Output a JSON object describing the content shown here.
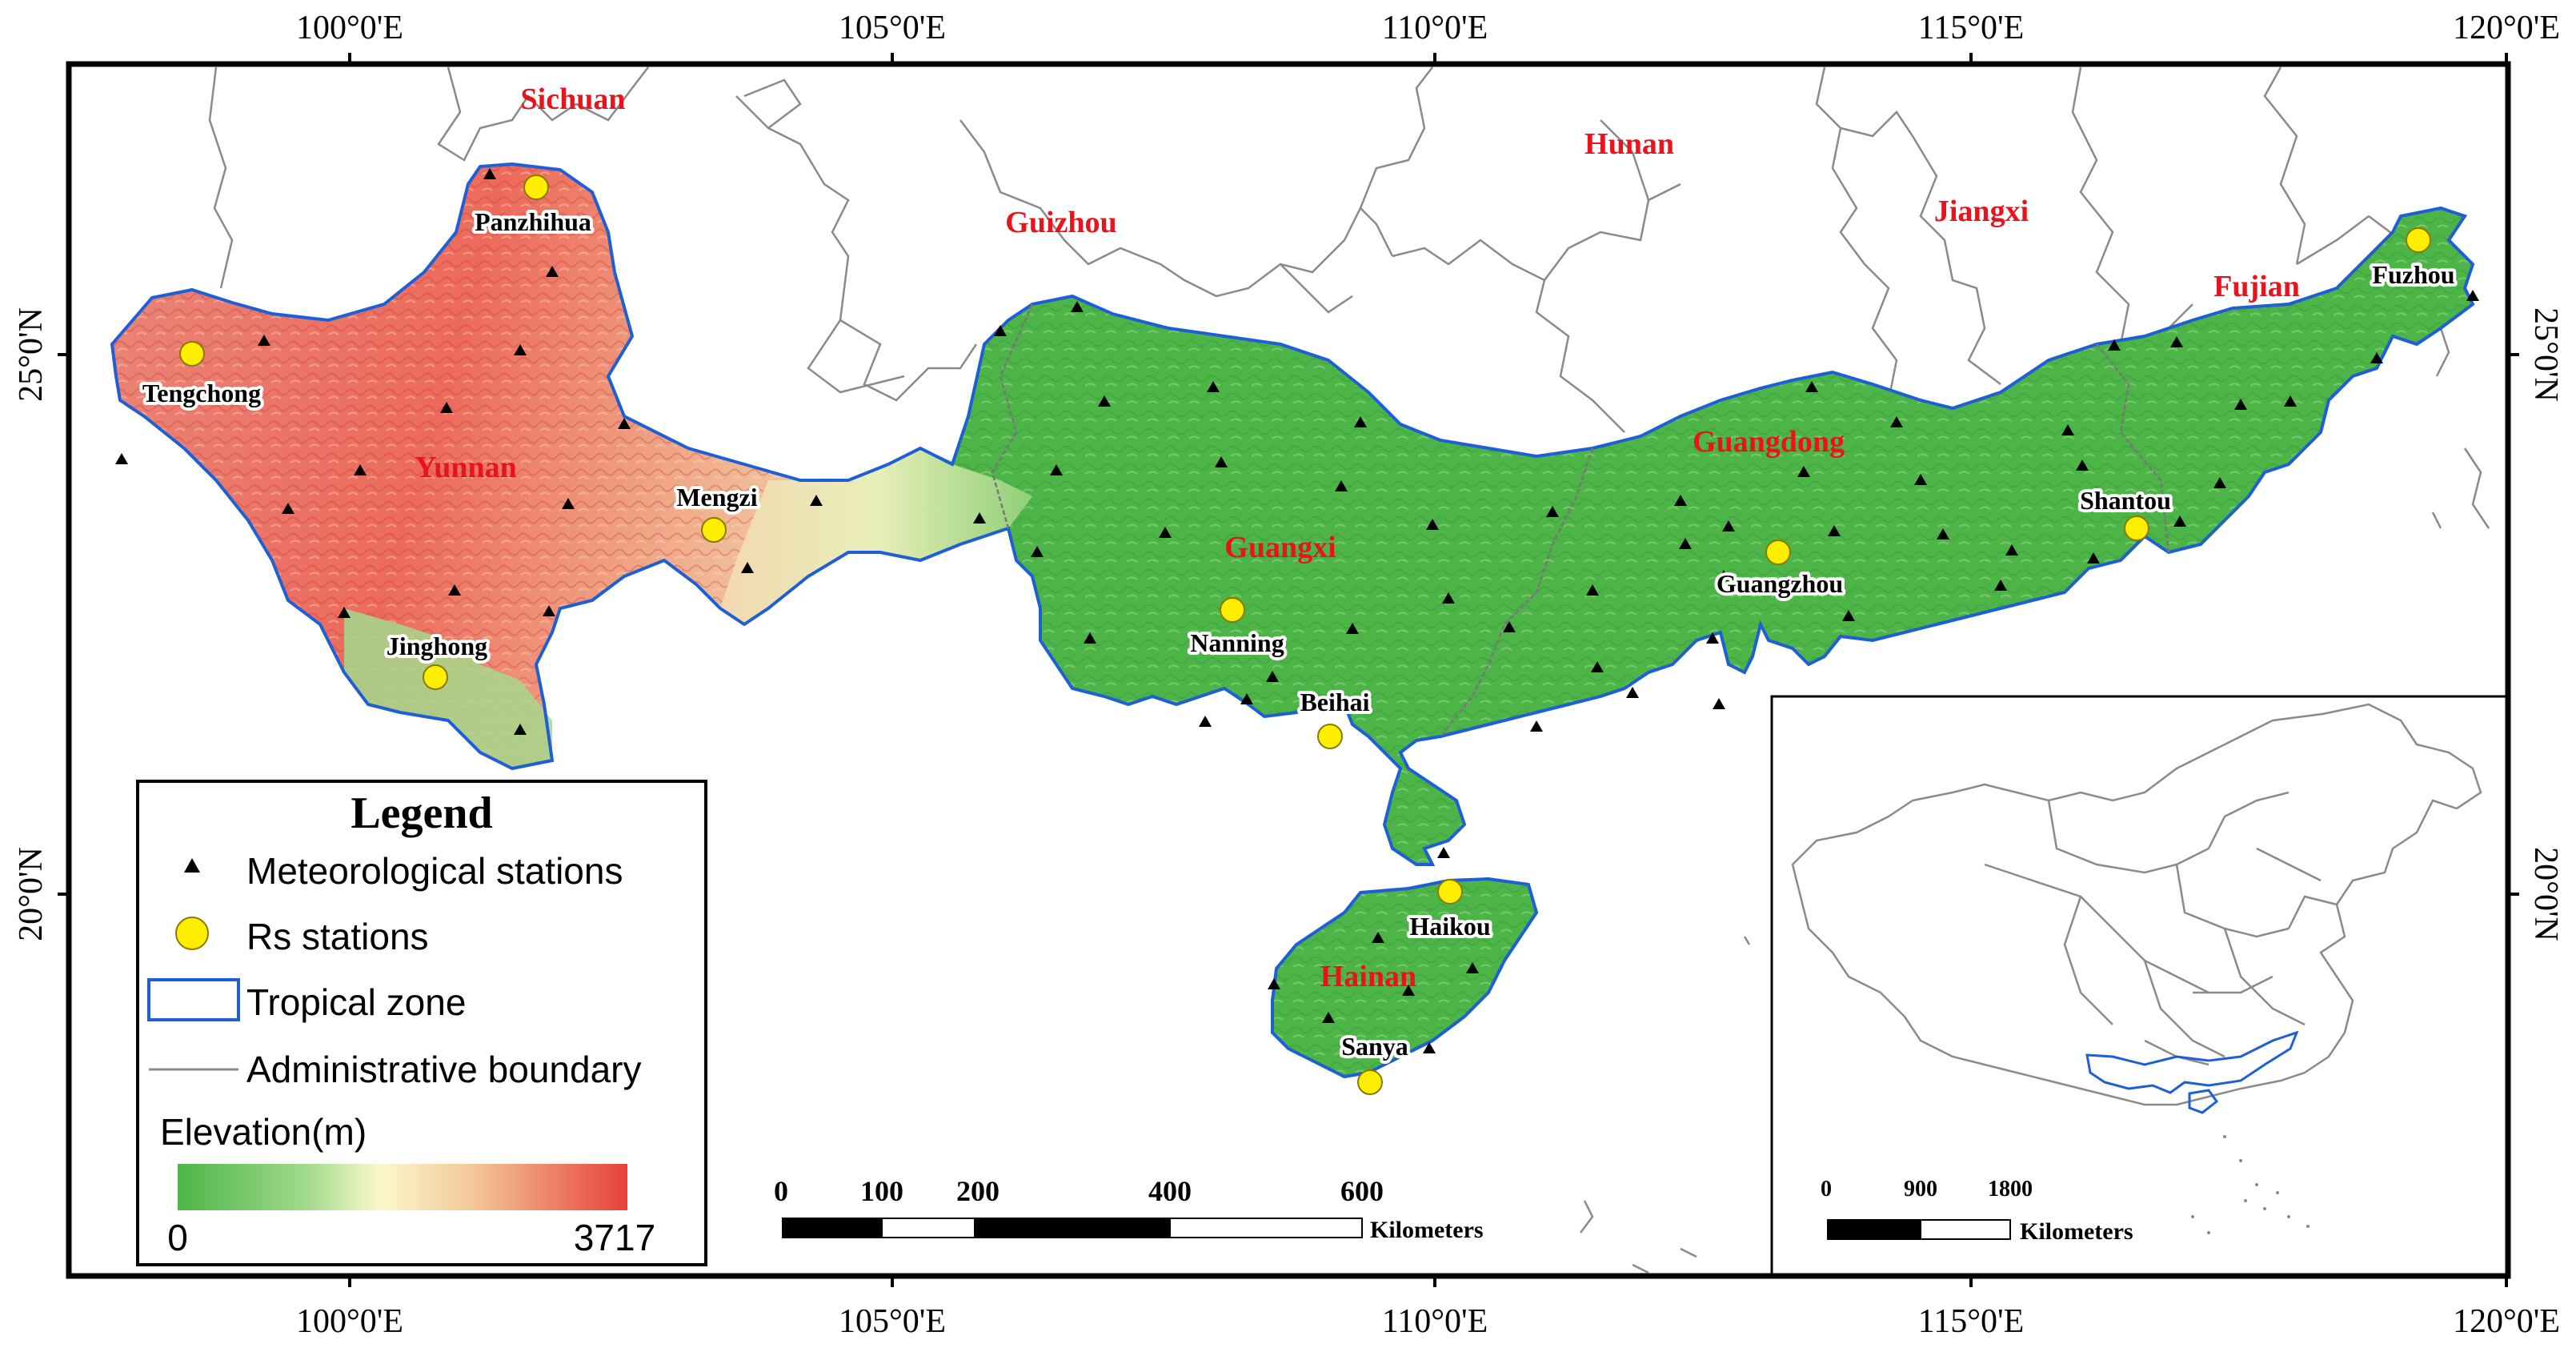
{
  "axes": {
    "longitude_labels": [
      "100°0'E",
      "105°0'E",
      "110°0'E",
      "115°0'E",
      "120°0'E"
    ],
    "latitude_labels": [
      "25°0'N",
      "20°0'N"
    ]
  },
  "provinces": [
    {
      "id": "sichuan",
      "label": "Sichuan"
    },
    {
      "id": "guizhou",
      "label": "Guizhou"
    },
    {
      "id": "hunan",
      "label": "Hunan"
    },
    {
      "id": "jiangxi",
      "label": "Jiangxi"
    },
    {
      "id": "fujian",
      "label": "Fujian"
    },
    {
      "id": "yunnan",
      "label": "Yunnan"
    },
    {
      "id": "guangxi",
      "label": "Guangxi"
    },
    {
      "id": "guangdong",
      "label": "Guangdong"
    },
    {
      "id": "hainan",
      "label": "Hainan"
    }
  ],
  "rs_stations": [
    {
      "id": "panzhihua",
      "label": "Panzhihua"
    },
    {
      "id": "tengchong",
      "label": "Tengchong"
    },
    {
      "id": "mengzi",
      "label": "Mengzi"
    },
    {
      "id": "jinghong",
      "label": "Jinghong"
    },
    {
      "id": "nanning",
      "label": "Nanning"
    },
    {
      "id": "beihai",
      "label": "Beihai"
    },
    {
      "id": "guangzhou",
      "label": "Guangzhou"
    },
    {
      "id": "shantou",
      "label": "Shantou"
    },
    {
      "id": "fuzhou",
      "label": "Fuzhou"
    },
    {
      "id": "haikou",
      "label": "Haikou"
    },
    {
      "id": "sanya",
      "label": "Sanya"
    }
  ],
  "legend": {
    "title": "Legend",
    "meteorological": "Meteorological stations",
    "rs": "Rs stations",
    "tropical": "Tropical zone",
    "admin": "Administrative boundary",
    "elevation_title": "Elevation(m)",
    "elevation_min": "0",
    "elevation_max": "3717"
  },
  "scale_bar": {
    "ticks": [
      "0",
      "100",
      "200",
      "400",
      "600"
    ],
    "unit": "Kilometers"
  },
  "inset": {
    "scale_ticks": [
      "0",
      "900",
      "1800"
    ],
    "unit": "Kilometers"
  },
  "colors": {
    "tropical_outline": "#1f5fd6",
    "low_elevation": "#4db548",
    "high_elevation": "#e8403a",
    "province_label": "#e8131b",
    "rs_fill": "#ffee00",
    "admin_boundary": "#888888"
  }
}
